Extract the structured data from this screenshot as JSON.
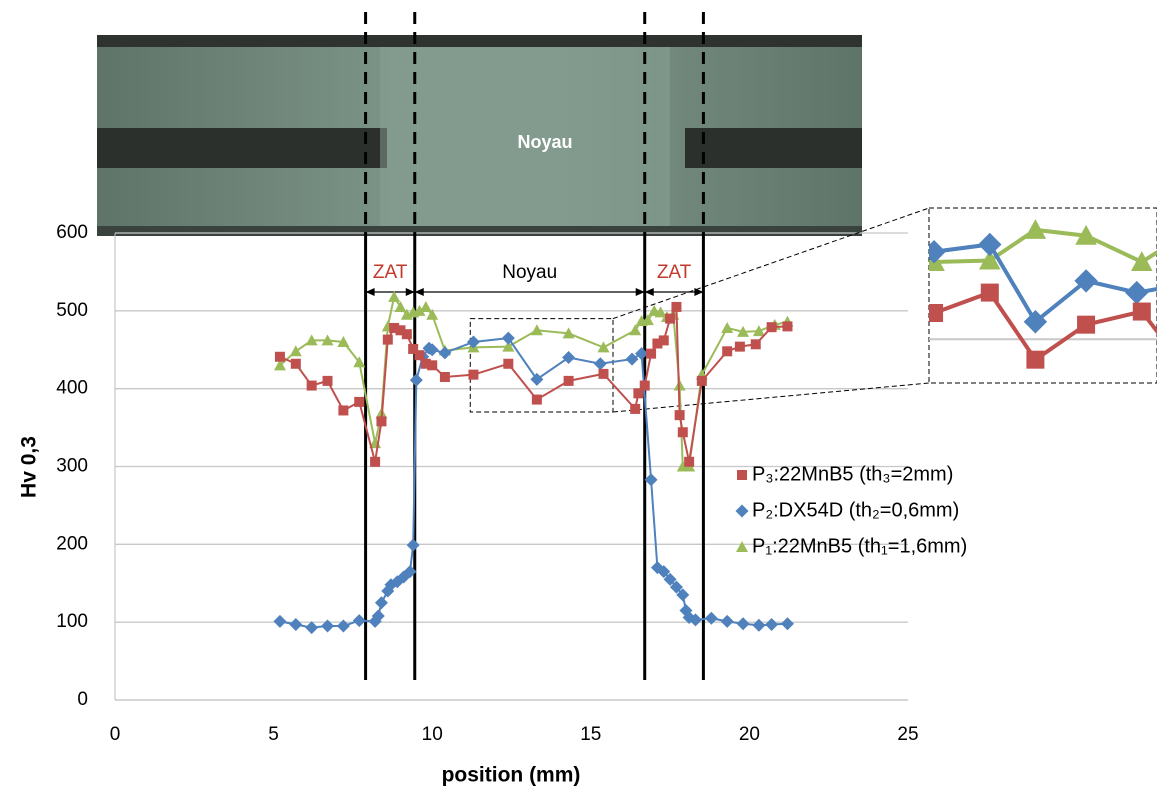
{
  "chart_data": {
    "type": "line",
    "image_label": "Noyau",
    "ylabel": "Hv 0,3",
    "xlabel": "position (mm)",
    "xlim": [
      0,
      25
    ],
    "xticks": [
      0,
      5,
      10,
      15,
      20,
      25
    ],
    "ylim": [
      0,
      600
    ],
    "yticks": [
      0,
      100,
      200,
      300,
      400,
      500,
      600
    ],
    "grid": true,
    "boundaries": [
      7.9,
      9.45,
      16.7,
      18.55
    ],
    "zones": [
      "ZAT",
      "Noyau",
      "ZAT"
    ],
    "zoom_box": {
      "xlim": [
        11.2,
        15.7
      ],
      "ylim": [
        370,
        490
      ]
    },
    "series": [
      {
        "name": "P₃:22MnB5 (th₃=2mm)",
        "color": "#c0504d",
        "marker": "square",
        "x": [
          5.2,
          5.7,
          6.2,
          6.7,
          7.2,
          7.7,
          8.2,
          8.4,
          8.6,
          8.8,
          9.0,
          9.2,
          9.4,
          9.6,
          9.8,
          10.0,
          10.4,
          11.3,
          12.4,
          13.3,
          14.3,
          15.4,
          16.4,
          16.5,
          16.7,
          16.9,
          17.1,
          17.3,
          17.5,
          17.7,
          17.8,
          17.9,
          18.1,
          18.5,
          19.3,
          19.7,
          20.2,
          20.7,
          21.2
        ],
        "values": [
          441,
          432,
          404,
          410,
          372,
          383,
          306,
          358,
          463,
          478,
          475,
          470,
          451,
          443,
          432,
          430,
          415,
          418,
          432,
          386,
          410,
          419,
          374,
          394,
          404,
          445,
          458,
          462,
          490,
          505,
          366,
          344,
          306,
          410,
          448,
          454,
          457,
          479,
          480
        ]
      },
      {
        "name": "P₂:DX54D (th₂=0,6mm)",
        "color": "#4f81bd",
        "marker": "diamond",
        "x": [
          5.2,
          5.7,
          6.2,
          6.7,
          7.2,
          7.7,
          8.2,
          8.3,
          8.4,
          8.6,
          8.7,
          8.9,
          9.1,
          9.3,
          9.4,
          9.5,
          9.7,
          9.9,
          10.0,
          10.4,
          11.3,
          12.4,
          13.3,
          14.3,
          15.3,
          16.3,
          16.6,
          16.9,
          17.1,
          17.3,
          17.5,
          17.7,
          17.9,
          18.0,
          18.1,
          18.3,
          18.8,
          19.3,
          19.8,
          20.3,
          20.7,
          21.2
        ],
        "values": [
          101,
          97,
          93,
          95,
          95,
          102,
          101,
          108,
          125,
          140,
          148,
          152,
          158,
          165,
          199,
          411,
          441,
          452,
          450,
          446,
          460,
          465,
          412,
          440,
          432,
          438,
          445,
          283,
          170,
          165,
          155,
          145,
          135,
          115,
          106,
          103,
          105,
          101,
          98,
          96,
          97,
          98
        ]
      },
      {
        "name": "P₁:22MnB5 (th₁=1,6mm)",
        "color": "#9bbb59",
        "marker": "triangle",
        "x": [
          5.2,
          5.7,
          6.2,
          6.7,
          7.2,
          7.7,
          8.2,
          8.4,
          8.6,
          8.8,
          9.0,
          9.2,
          9.4,
          9.6,
          9.8,
          10.0,
          10.4,
          11.3,
          12.4,
          13.3,
          14.3,
          15.4,
          16.4,
          16.6,
          16.8,
          17.0,
          17.2,
          17.4,
          17.6,
          17.8,
          17.9,
          18.1,
          18.5,
          19.3,
          19.8,
          20.3,
          20.8,
          21.2
        ],
        "values": [
          430,
          448,
          462,
          462,
          460,
          434,
          330,
          368,
          480,
          518,
          505,
          495,
          498,
          500,
          505,
          495,
          449,
          453,
          454,
          475,
          471,
          453,
          475,
          487,
          488,
          500,
          498,
          492,
          495,
          404,
          300,
          300,
          418,
          478,
          473,
          474,
          482,
          486
        ]
      }
    ]
  }
}
